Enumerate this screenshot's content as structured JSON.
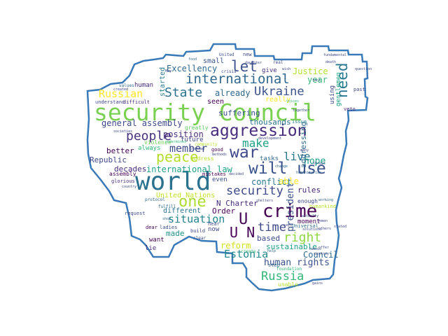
{
  "words": [
    {
      "text": "security Council",
      "color": "#7ad151"
    },
    {
      "text": "world",
      "color": "#2c728e"
    },
    {
      "text": "aggression",
      "color": "#472d7b"
    },
    {
      "text": "will use",
      "color": "#3b528b"
    },
    {
      "text": "crime",
      "color": "#440154"
    },
    {
      "text": "war",
      "color": "#3e4989"
    },
    {
      "text": "peace",
      "color": "#b5de2b"
    },
    {
      "text": "international",
      "color": "#31688e"
    },
    {
      "text": "let",
      "color": "#3b528b"
    },
    {
      "text": "need",
      "color": "#2a788e"
    },
    {
      "text": "Ukraine",
      "color": "#3b528b"
    },
    {
      "text": "State",
      "color": "#2c728e"
    },
    {
      "text": "people",
      "color": "#46327e"
    },
    {
      "text": "one",
      "color": "#addc30"
    },
    {
      "text": "security",
      "color": "#3e4989"
    },
    {
      "text": "right",
      "color": "#90d743"
    },
    {
      "text": "Russia",
      "color": "#35b779"
    },
    {
      "text": "U N",
      "color": "#440154"
    },
    {
      "text": "U",
      "color": "#440154"
    },
    {
      "text": "time",
      "color": "#3e4989"
    },
    {
      "text": "make",
      "color": "#1fa187"
    },
    {
      "text": "member",
      "color": "#3e4989"
    },
    {
      "text": "live",
      "color": "#2a788e"
    },
    {
      "text": "situation",
      "color": "#26828e"
    },
    {
      "text": "Estonia",
      "color": "#238a8d"
    },
    {
      "text": "human rights",
      "color": "#3b528b"
    },
    {
      "text": "Russian",
      "color": "#fde725"
    },
    {
      "text": "president",
      "color": "#3b528b"
    },
    {
      "text": "Excellency",
      "color": "#31688e"
    },
    {
      "text": "Justice",
      "color": "#b5de2b"
    },
    {
      "text": "year",
      "color": "#35b779"
    },
    {
      "text": "hope",
      "color": "#1f9e89"
    },
    {
      "text": "general assembly",
      "color": "#3e4989"
    },
    {
      "text": "position",
      "color": "#472d7b"
    },
    {
      "text": "international law",
      "color": "#1fa187"
    },
    {
      "text": "conflict",
      "color": "#2a788e"
    },
    {
      "text": "able",
      "color": "#fde725"
    },
    {
      "text": "already",
      "color": "#31688e"
    },
    {
      "text": "suffering",
      "color": "#3b528b"
    },
    {
      "text": "thousands",
      "color": "#2c728e"
    },
    {
      "text": "rules",
      "color": "#482878"
    },
    {
      "text": "Order",
      "color": "#440154"
    },
    {
      "text": "N Charter",
      "color": "#472d7b"
    },
    {
      "text": "reform",
      "color": "#d2e21b"
    },
    {
      "text": "Council",
      "color": "#31688e"
    },
    {
      "text": "sustainable",
      "color": "#1f9e89"
    },
    {
      "text": "based",
      "color": "#3e4989"
    },
    {
      "text": "made",
      "color": "#21918c"
    },
    {
      "text": "Republic",
      "color": "#3e4989"
    },
    {
      "text": "better",
      "color": "#440154"
    },
    {
      "text": "decades",
      "color": "#472d7b"
    },
    {
      "text": "United Nations",
      "color": "#c2df23"
    },
    {
      "text": "different",
      "color": "#2c728e"
    },
    {
      "text": "seen",
      "color": "#440154"
    },
    {
      "text": "really",
      "color": "#fde725"
    },
    {
      "text": "started",
      "color": "#2a788e"
    },
    {
      "text": "small",
      "color": "#3b528b"
    },
    {
      "text": "human",
      "color": "#482878"
    },
    {
      "text": "give",
      "color": "#46327e"
    },
    {
      "text": "addressing",
      "color": "#31688e"
    },
    {
      "text": "always",
      "color": "#35b779"
    },
    {
      "text": "future",
      "color": "#3e4989"
    },
    {
      "text": "violence",
      "color": "#6ece58"
    },
    {
      "text": "greatly",
      "color": "#5ec962"
    },
    {
      "text": "moment",
      "color": "#440154"
    },
    {
      "text": "enough",
      "color": "#3e4989"
    },
    {
      "text": "tasks",
      "color": "#31688e"
    },
    {
      "text": "even",
      "color": "#3b528b"
    },
    {
      "text": "want",
      "color": "#440154"
    },
    {
      "text": "lie",
      "color": "#472d7b"
    },
    {
      "text": "now",
      "color": "#3e4989"
    },
    {
      "text": "assembly",
      "color": "#440154"
    },
    {
      "text": "address",
      "color": "#b5de2b"
    },
    {
      "text": "using",
      "color": "#3e4989"
    },
    {
      "text": "gentlemen",
      "color": "#1fa187"
    },
    {
      "text": "ladies",
      "color": "#3b528b"
    },
    {
      "text": "dear",
      "color": "#440154"
    },
    {
      "text": "unable",
      "color": "#b5de2b"
    },
    {
      "text": "step",
      "color": "#31688e"
    },
    {
      "text": "issue",
      "color": "#26828e"
    },
    {
      "text": "mistakes",
      "color": "#440154"
    },
    {
      "text": "hear",
      "color": "#3e4989"
    },
    {
      "text": "good",
      "color": "#440154"
    },
    {
      "text": "build",
      "color": "#3e4989"
    },
    {
      "text": "crisis",
      "color": "#3e4989"
    },
    {
      "text": "veto",
      "color": "#482878"
    },
    {
      "text": "past",
      "color": "#3e4989"
    },
    {
      "text": "glorious",
      "color": "#472d7b"
    },
    {
      "text": "fulfill",
      "color": "#31688e"
    },
    {
      "text": "request",
      "color": "#3e4989"
    },
    {
      "text": "understand",
      "color": "#3e4989"
    },
    {
      "text": "difficult",
      "color": "#482878"
    },
    {
      "text": "values",
      "color": "#31688e"
    },
    {
      "text": "United",
      "color": "#3b528b"
    },
    {
      "text": "new",
      "color": "#3e4989"
    },
    {
      "text": "Universal",
      "color": "#31688e"
    },
    {
      "text": "humankind",
      "color": "#b5de2b"
    },
    {
      "text": "working",
      "color": "#31688e"
    },
    {
      "text": "real",
      "color": "#3e4989"
    },
    {
      "text": "create",
      "color": "#35b779"
    },
    {
      "text": "clear",
      "color": "#3e4989"
    },
    {
      "text": "protocol",
      "color": "#31688e"
    },
    {
      "text": "country",
      "color": "#3e4989"
    },
    {
      "text": "societies",
      "color": "#3e4989"
    },
    {
      "text": "shop",
      "color": "#31688e"
    },
    {
      "text": "decided",
      "color": "#3e4989"
    },
    {
      "text": "solutions",
      "color": "#3e4989"
    },
    {
      "text": "change",
      "color": "#31688e"
    },
    {
      "text": "stated",
      "color": "#3e4989"
    },
    {
      "text": "others",
      "color": "#3e4989"
    },
    {
      "text": "offer",
      "color": "#3e4989"
    },
    {
      "text": "destroy",
      "color": "#3e4989"
    },
    {
      "text": "foundation",
      "color": "#35b779"
    },
    {
      "text": "gains",
      "color": "#3e4989"
    },
    {
      "text": "fundamental",
      "color": "#3e4989"
    },
    {
      "text": "daughter",
      "color": "#3e4989"
    },
    {
      "text": "food",
      "color": "#31688e"
    },
    {
      "text": "death",
      "color": "#3e4989"
    },
    {
      "text": "wish",
      "color": "#3e4989"
    },
    {
      "text": "question",
      "color": "#3e4989"
    },
    {
      "text": "fact",
      "color": "#3e4989"
    },
    {
      "text": "voices",
      "color": "#35b779"
    },
    {
      "text": "together",
      "color": "#3e4989"
    },
    {
      "text": "May",
      "color": "#3e4989"
    },
    {
      "text": "created",
      "color": "#3e4989"
    },
    {
      "text": "humanitarian",
      "color": "#31688e"
    },
    {
      "text": "community",
      "color": "#b5de2b"
    },
    {
      "text": "methods",
      "color": "#3e4989"
    },
    {
      "text": "Yemen",
      "color": "#3e4989"
    },
    {
      "text": "says",
      "color": "#3e4989"
    },
    {
      "text": "threat",
      "color": "#3e4989"
    },
    {
      "text": "many",
      "color": "#3e4989"
    },
    {
      "text": "instead",
      "color": "#3e4989"
    },
    {
      "text": "famous",
      "color": "#3e4989"
    },
    {
      "text": "help",
      "color": "#31688e"
    },
    {
      "text": "actually",
      "color": "#3e4989"
    },
    {
      "text": "development",
      "color": "#3e4989"
    },
    {
      "text": "undermines",
      "color": "#35b779"
    },
    {
      "text": "shelters",
      "color": "#3e4989"
    }
  ],
  "shape_color": "#3a7ab8"
}
